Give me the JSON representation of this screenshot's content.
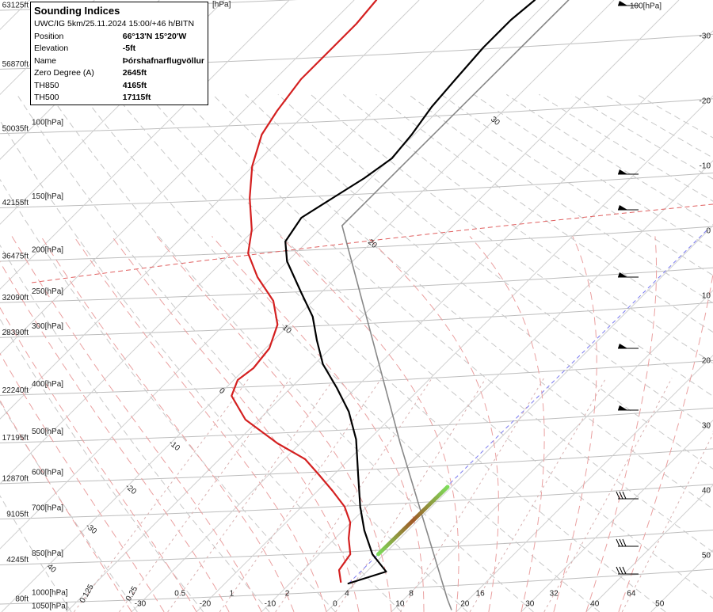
{
  "chart_data": {
    "type": "skewt",
    "xlim": [
      -52.2,
      57.6
    ],
    "ylim": [
      80,
      63125
    ],
    "xticks": [
      -30,
      -20,
      -10,
      0,
      10,
      20,
      30,
      40,
      50
    ],
    "yticks": [
      {
        "value": 80,
        "label": "80ft"
      },
      {
        "value": 4245,
        "label": "4245ft"
      },
      {
        "value": 9105,
        "label": "9105ft"
      },
      {
        "value": 12870,
        "label": "12870ft"
      },
      {
        "value": 17195,
        "label": "17195ft"
      },
      {
        "value": 22240,
        "label": "22240ft"
      },
      {
        "value": 28390,
        "label": "28390ft"
      },
      {
        "value": 32090,
        "label": "32090ft"
      },
      {
        "value": 36475,
        "label": "36475ft"
      },
      {
        "value": 42155,
        "label": "42155ft"
      },
      {
        "value": 50035,
        "label": "50035ft"
      },
      {
        "value": 56870,
        "label": "56870ft"
      },
      {
        "value": 63125,
        "label": "63125ft"
      }
    ],
    "pressure_labels": [
      "1000[hPa]",
      "850[hPa]",
      "700[hPa]",
      "600[hPa]",
      "500[hPa]",
      "400[hPa]",
      "300[hPa]",
      "250[hPa]",
      "200[hPa]",
      "150[hPa]",
      "100[hPa]",
      null,
      null
    ],
    "extra_labels": [
      "1050[hPa]",
      "[hPa]",
      "100[hPa]"
    ],
    "mixing_ratio_lines": [
      0.125,
      0.25,
      0.5,
      1,
      2,
      4,
      8,
      16,
      32,
      64
    ],
    "adiabat_labels": [
      "40",
      "-30",
      "-20",
      "-10",
      "0",
      "10",
      "20",
      "30"
    ],
    "series": [
      {
        "color": "#000000",
        "width": 2.2,
        "values": [
          -1.0,
          3.0,
          -1.8,
          -6.7,
          -11.0,
          -16.2,
          -22.0,
          -27.4,
          -32.9,
          -38.7,
          -43.3,
          -47.6,
          -53.0,
          -60.1,
          -63.4,
          -64.6,
          -62.8,
          -61.0,
          -59.8,
          -60.4,
          -61.6,
          -62.2,
          -62.8,
          -62.8,
          -62.2
        ],
        "heights": [
          1760,
          3020,
          4870,
          7390,
          9915,
          13280,
          17060,
          20000,
          22525,
          25045,
          27570,
          30090,
          32610,
          35975,
          38075,
          40600,
          42700,
          44800,
          46900,
          49420,
          52365,
          55310,
          58670,
          61610,
          63715
        ]
      },
      {
        "color": "#d42020",
        "width": 2.2,
        "values": [
          -2.4,
          -4.5,
          -5.2,
          -7.9,
          -10.1,
          -13.4,
          -17.7,
          -22.2,
          -26.8,
          -33.5,
          -42.1,
          -47.9,
          -49.4,
          -48.8,
          -49.4,
          -51.8,
          -56.1,
          -62.2,
          -67.3,
          -70.4,
          -75.6,
          -80.1,
          -83.5,
          -84.8,
          -86.0,
          -86.0,
          -86.0,
          -86.6
        ],
        "heights": [
          1930,
          3190,
          4870,
          6550,
          8235,
          9915,
          11600,
          13280,
          14960,
          16640,
          19160,
          21685,
          23365,
          24625,
          26730,
          29250,
          31770,
          34290,
          36815,
          39335,
          42700,
          46060,
          49420,
          51945,
          55310,
          58670,
          61190,
          63715
        ]
      },
      {
        "color": "#888888",
        "width": 1.6,
        "values": [
          18.9,
          16.7,
          -14.6,
          -57.1,
          -57.0
        ],
        "heights": [
          -1010,
          80,
          16640,
          39755,
          63715
        ]
      },
      {
        "gradient": [
          "#7ddc5a",
          "#a05a28",
          "#7ddc5a"
        ],
        "width": 5,
        "values": [
          -0.9,
          -0.6
        ],
        "heights": [
          4870,
          12015
        ]
      }
    ]
  },
  "info_box": {
    "title": "Sounding Indices",
    "subtitle": "UWC/IG 5km/25.11.2024 15:00/+46 h/BITN",
    "rows": [
      [
        "Position",
        "66°13'N 15°20'W"
      ],
      [
        "Elevation",
        "-5ft"
      ],
      [
        "Name",
        "Þórshafnarflugvöllur"
      ],
      [
        "Zero Degree (A)",
        "2645ft"
      ],
      [
        "TH850",
        "4165ft"
      ],
      [
        "TH500",
        "17115ft"
      ]
    ]
  }
}
